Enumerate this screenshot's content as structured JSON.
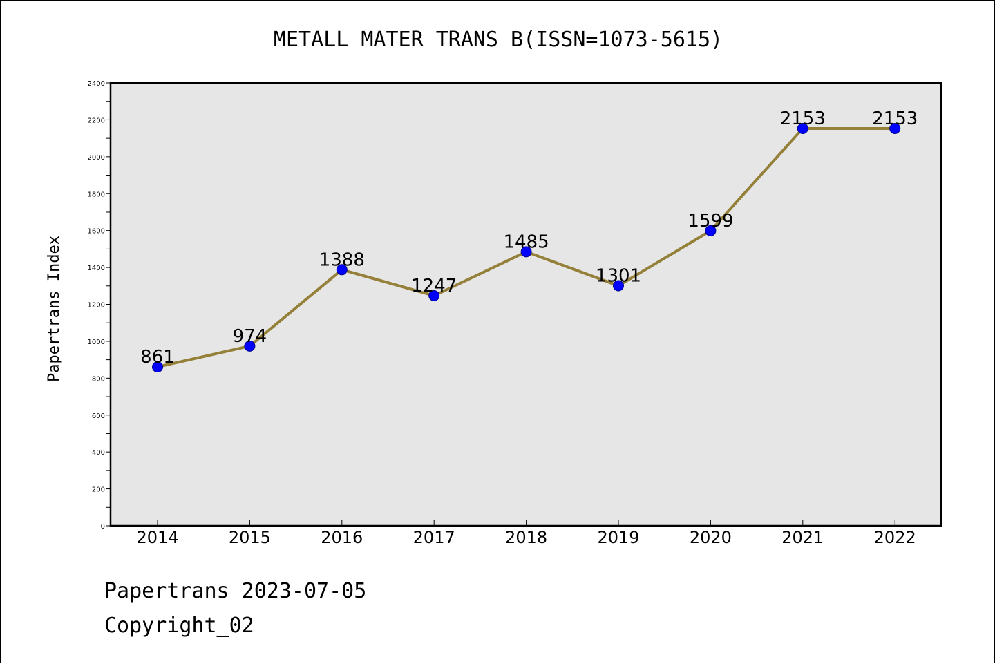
{
  "footer": {
    "line1": "Papertrans 2023-07-05",
    "line2": "Copyright_02"
  },
  "colors": {
    "plot_background": "#e6e6e6",
    "line": "#948038",
    "marker_fill": "#0000ff",
    "marker_edge": "#00008b",
    "axis": "#000000"
  },
  "chart_data": {
    "type": "line",
    "title": "METALL MATER TRANS B(ISSN=1073-5615)",
    "xlabel": "",
    "ylabel": "Papertrans Index",
    "categories": [
      "2014",
      "2015",
      "2016",
      "2017",
      "2018",
      "2019",
      "2020",
      "2021",
      "2022"
    ],
    "values": [
      861,
      974,
      1388,
      1247,
      1485,
      1301,
      1599,
      2153,
      2153
    ],
    "data_labels": [
      "861",
      "974",
      "1388",
      "1247",
      "1485",
      "1301",
      "1599",
      "2153",
      "2153"
    ],
    "ylim": [
      0,
      2400
    ],
    "y_ticks": [
      0,
      200,
      400,
      600,
      800,
      1000,
      1200,
      1400,
      1600,
      1800,
      2000,
      2200,
      2400
    ],
    "y_tick_labels": [
      "0",
      "200",
      "400",
      "600",
      "800",
      "1000",
      "1200",
      "1400",
      "1600",
      "1800",
      "2000",
      "2200",
      "2400"
    ],
    "grid": false,
    "legend": "none"
  }
}
